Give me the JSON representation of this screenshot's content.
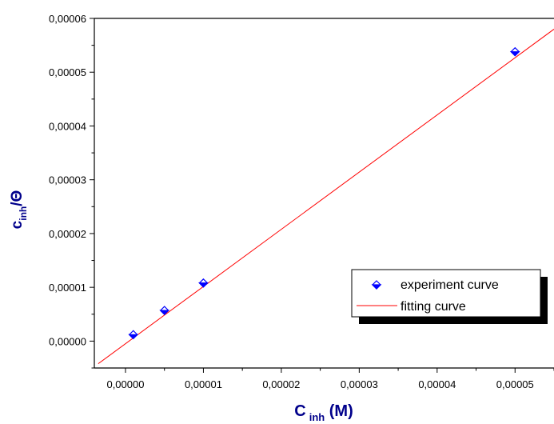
{
  "chart_data": {
    "type": "scatter",
    "xlabel": {
      "main": "C",
      "sub": "inh",
      "suffix": " (M)"
    },
    "ylabel": {
      "main": "c",
      "sub": "inh",
      "suffix": "/Θ"
    },
    "xlim": [
      -4e-06,
      5.5e-05
    ],
    "ylim": [
      -5e-06,
      6e-05
    ],
    "x_ticks": [
      0,
      1e-05,
      2e-05,
      3e-05,
      4e-05,
      5e-05
    ],
    "x_tick_labels": [
      "0,00000",
      "0,00001",
      "0,00002",
      "0,00003",
      "0,00004",
      "0,00005"
    ],
    "y_ticks": [
      0,
      1e-05,
      2e-05,
      3e-05,
      4e-05,
      5e-05,
      6e-05
    ],
    "y_tick_labels": [
      "0,00000",
      "0,00001",
      "0,00002",
      "0,00003",
      "0,00004",
      "0,00005",
      "0,00006"
    ],
    "series": [
      {
        "name": "experiment curve",
        "kind": "markers",
        "marker": "half-filled-diamond",
        "color": "#0000ff",
        "x": [
          1e-06,
          5e-06,
          1e-05,
          5e-05
        ],
        "y": [
          1.2e-06,
          5.7e-06,
          1.08e-05,
          5.38e-05
        ]
      },
      {
        "name": "fitting curve",
        "kind": "line",
        "color": "#ff0000",
        "x": [
          -3.5e-06,
          5.5e-05
        ],
        "y": [
          -4.2e-06,
          5.8e-05
        ]
      }
    ],
    "grid": false,
    "legend_position": "lower-right"
  },
  "colors": {
    "axis": "#000000",
    "axis_title": "#00008b",
    "marker": "#0000ff",
    "fit_line": "#ff0000",
    "legend_shadow": "#000000"
  }
}
